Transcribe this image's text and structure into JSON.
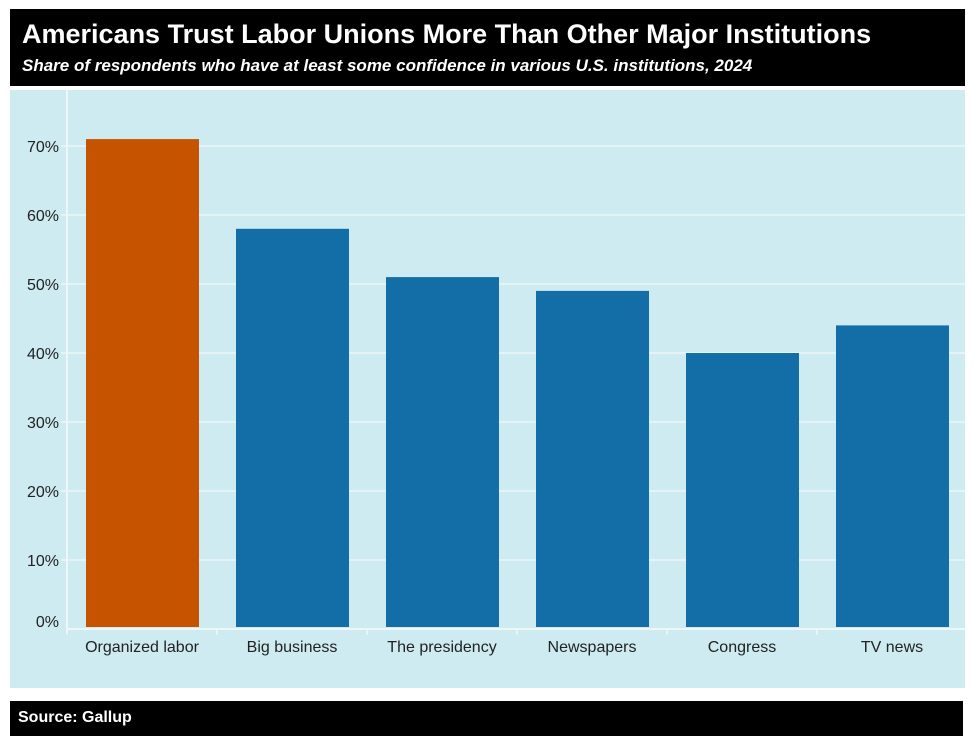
{
  "title": "Americans Trust Labor Unions More Than Other Major Institutions",
  "subtitle": "Share of respondents who have at least some confidence in various U.S. institutions, 2024",
  "source": "Source: Gallup",
  "chart_data": {
    "type": "bar",
    "title": "Americans Trust Labor Unions More Than Other Major Institutions",
    "subtitle": "Share of respondents who have at least some confidence in various U.S. institutions, 2024",
    "categories": [
      "Organized labor",
      "Big business",
      "The presidency",
      "Newspapers",
      "Congress",
      "TV news"
    ],
    "values": [
      71,
      58,
      51,
      49,
      40,
      44
    ],
    "xlabel": "",
    "ylabel": "",
    "ylim": [
      0,
      70
    ],
    "yticks": [
      "0%",
      "10%",
      "20%",
      "30%",
      "40%",
      "50%",
      "60%",
      "70%"
    ],
    "grid": true,
    "colors": {
      "highlight": "#c65300",
      "default": "#136ea8",
      "background": "#cdebf0",
      "grid": "#eef6f8"
    },
    "highlight_index": 0
  }
}
